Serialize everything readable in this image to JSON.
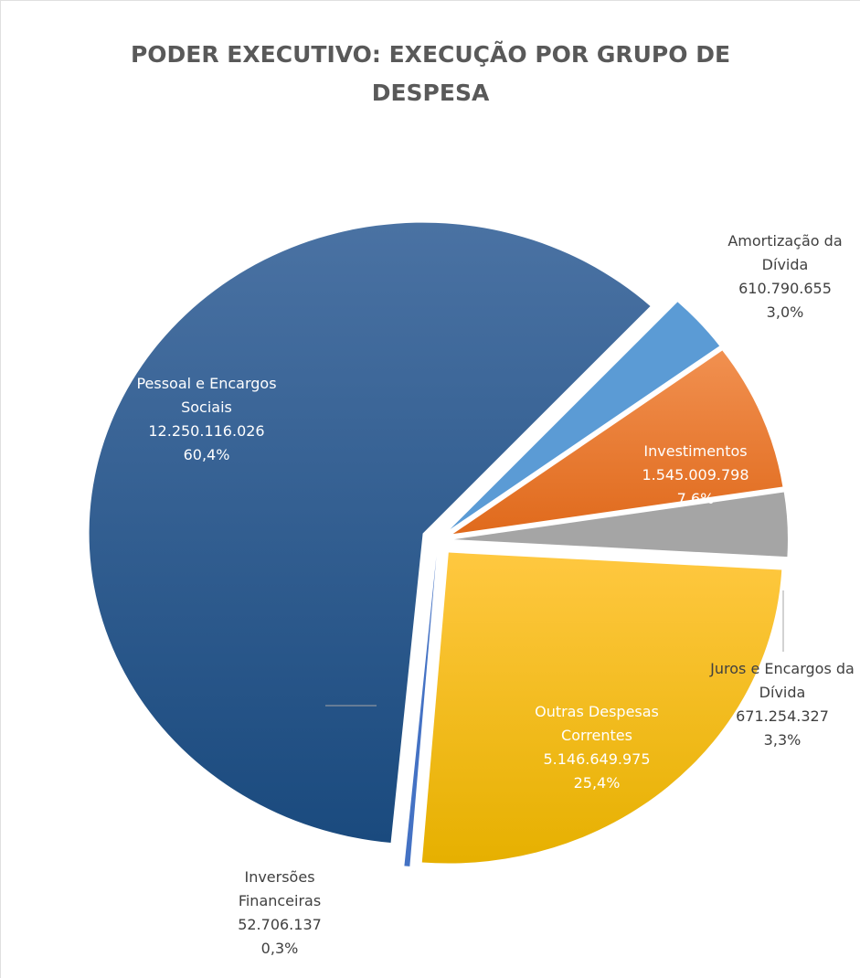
{
  "chart_data": {
    "type": "pie",
    "title": "PODER EXECUTIVO: EXECUÇÃO POR GRUPO DE DESPESA",
    "categories": [
      "Amortização da Dívida",
      "Investimentos",
      "Juros e Encargos da Dívida",
      "Outras Despesas Correntes",
      "Inversões Financeiras",
      "Pessoal e Encargos Sociais"
    ],
    "values": [
      610790655,
      1545009798,
      671254327,
      5146649975,
      52706137,
      12250116026
    ],
    "value_labels": [
      "610.790.655",
      "1.545.009.798",
      "671.254.327",
      "5.146.649.975",
      "52.706.137",
      "12.250.116.026"
    ],
    "percent_labels": [
      "3,0%",
      "7,6%",
      "3,3%",
      "25,4%",
      "0,3%",
      "60,4%"
    ],
    "colors": [
      "#5b9bd5",
      "#ed7d31",
      "#a5a5a5",
      "#ffc000",
      "#4472c4",
      "#255e99"
    ]
  }
}
